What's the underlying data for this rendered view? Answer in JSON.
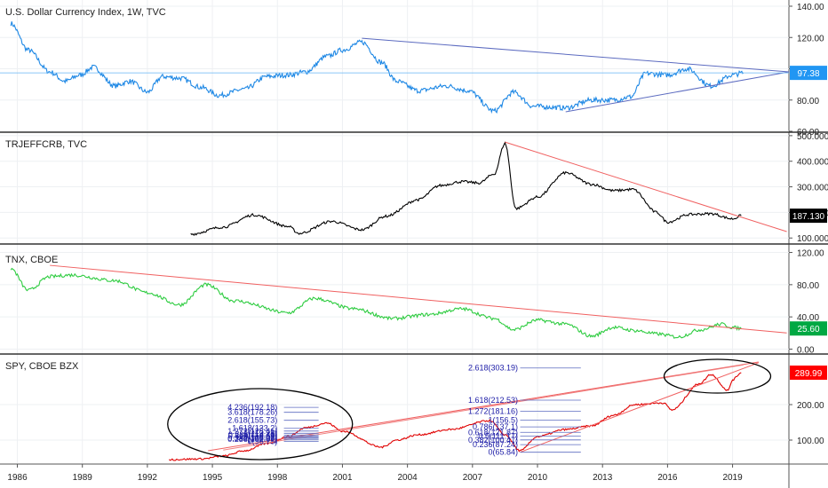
{
  "chart_data": [
    {
      "type": "line",
      "title": "U.S. Dollar Currency Index, 1W, TVC",
      "color": "#1e88e5",
      "ylim": [
        60,
        140
      ],
      "y_ticks": [
        "140.00",
        "120.00",
        "100.00",
        "80.00",
        "60.00"
      ],
      "y_tick_values": [
        140,
        120,
        100,
        80,
        60
      ],
      "last_value": "97.38",
      "last_value_num": 97.38,
      "badge_color": "#2196f3",
      "x": [
        1985.7,
        1986.5,
        1987.5,
        1988.2,
        1988.9,
        1989.5,
        1990.5,
        1991.2,
        1992.0,
        1992.7,
        1993.5,
        1994.5,
        1995.3,
        1996.5,
        1997.5,
        1998.5,
        1999.3,
        2000.3,
        2001.0,
        2001.9,
        2002.8,
        2003.5,
        2004.5,
        2005.8,
        2006.8,
        2008.0,
        2008.9,
        2009.8,
        2011.3,
        2012.5,
        2013.5,
        2014.3,
        2015.0,
        2016.0,
        2016.9,
        2018.0,
        2019.0,
        2019.5
      ],
      "y": [
        129,
        112,
        98,
        92,
        96,
        101,
        89,
        92,
        85,
        95,
        94,
        88,
        83,
        87,
        95,
        96,
        98,
        108,
        112,
        117,
        104,
        92,
        86,
        89,
        86,
        73,
        85,
        76,
        75,
        80,
        80,
        82,
        97,
        96,
        100,
        89,
        96,
        97.38
      ]
    },
    {
      "type": "line",
      "title": "TRJEFFCRB, TVC",
      "color": "#000000",
      "ylim": [
        80,
        510
      ],
      "y_ticks": [
        "500.000",
        "400.000",
        "300.000",
        "200.000",
        "100.000"
      ],
      "y_tick_values": [
        500,
        400,
        300,
        200,
        100
      ],
      "last_value": "187.130",
      "last_value_num": 187.13,
      "badge_color": "#000000",
      "x": [
        1994.0,
        1995.5,
        1996.9,
        1998.5,
        1999.0,
        2000.5,
        2001.9,
        2003.0,
        2004.5,
        2005.5,
        2006.5,
        2007.3,
        2008.0,
        2008.5,
        2009.0,
        2010.0,
        2011.3,
        2012.5,
        2013.5,
        2014.4,
        2015.5,
        2016.0,
        2017.0,
        2018.0,
        2019.0,
        2019.4
      ],
      "y": [
        115,
        143,
        190,
        145,
        118,
        165,
        132,
        185,
        250,
        305,
        320,
        315,
        350,
        470,
        215,
        260,
        355,
        310,
        285,
        290,
        200,
        162,
        192,
        195,
        175,
        187.13
      ]
    },
    {
      "type": "line",
      "title": "TNX, CBOE",
      "color": "#2ecc40",
      "ylim": [
        -5,
        125
      ],
      "y_ticks": [
        "120.00",
        "80.00",
        "40.00",
        "0.00"
      ],
      "y_tick_values": [
        120,
        80,
        40,
        0
      ],
      "last_value": "25.60",
      "last_value_num": 25.6,
      "badge_color": "#00a843",
      "x": [
        1985.7,
        1986.5,
        1987.5,
        1988.5,
        1990.5,
        1992.0,
        1993.5,
        1994.7,
        1996.0,
        1998.5,
        1999.7,
        2001.5,
        2003.3,
        2005.0,
        2006.5,
        2008.0,
        2008.9,
        2010.0,
        2011.3,
        2012.5,
        2013.5,
        2014.5,
        2015.5,
        2016.5,
        2017.5,
        2018.5,
        2019.0,
        2019.4
      ],
      "y": [
        100,
        73,
        90,
        92,
        85,
        70,
        55,
        80,
        60,
        45,
        63,
        50,
        38,
        43,
        50,
        38,
        24,
        36,
        31,
        16,
        27,
        23,
        19,
        15,
        24,
        31,
        27,
        25.6
      ]
    },
    {
      "type": "line",
      "title": "SPY, CBOE BZX",
      "color": "#e00000",
      "ylim": [
        40,
        340
      ],
      "y_ticks": [
        "200.00",
        "100.00"
      ],
      "y_tick_values": [
        200,
        100
      ],
      "last_value": "289.99",
      "last_value_num": 289.99,
      "badge_color": "#ff0000",
      "x": [
        1993.0,
        1994.5,
        1995.5,
        1996.5,
        1997.5,
        1998.5,
        1999.3,
        2000.3,
        2001.0,
        2002.8,
        2003.5,
        2004.5,
        2006.0,
        2007.8,
        2008.5,
        2009.2,
        2010.0,
        2011.3,
        2012.5,
        2013.5,
        2014.5,
        2015.8,
        2016.2,
        2017.5,
        2018.0,
        2018.8,
        2019.0,
        2019.4
      ],
      "y": [
        45,
        47,
        55,
        70,
        90,
        110,
        135,
        148,
        125,
        80,
        100,
        115,
        130,
        155,
        115,
        70,
        110,
        130,
        140,
        170,
        200,
        205,
        185,
        260,
        285,
        240,
        270,
        289.99
      ]
    }
  ],
  "x_ticks": [
    "1986",
    "1989",
    "1992",
    "1995",
    "1998",
    "2001",
    "2004",
    "2007",
    "2010",
    "2013",
    "2016",
    "2019"
  ],
  "x_tick_values": [
    1986,
    1989,
    1992,
    1995,
    1998,
    2001,
    2004,
    2007,
    2010,
    2013,
    2016,
    2019
  ],
  "fib_right": [
    {
      "label": "2.618(303.19)",
      "value": 303.19
    },
    {
      "label": "1.618(212.53)",
      "value": 212.53
    },
    {
      "label": "1.272(181.16)",
      "value": 181.16
    },
    {
      "label": "1(156.5)",
      "value": 156.5
    },
    {
      "label": "0.786(137.1)",
      "value": 137.1
    },
    {
      "label": "0.618(121.87)",
      "value": 121.87
    },
    {
      "label": "0.5(111.17)",
      "value": 111.17
    },
    {
      "label": "0.382(100.47)",
      "value": 100.47
    },
    {
      "label": "0.236(87.24)",
      "value": 87.24
    },
    {
      "label": "0(65.84)",
      "value": 65.84
    }
  ],
  "fib_left": [
    {
      "label": "4.236(192.18)",
      "value": 192.18
    },
    {
      "label": "3.618(178.26)",
      "value": 178.26
    },
    {
      "label": "2.618(155.73)",
      "value": 155.73
    },
    {
      "label": "1.618(133.2)",
      "value": 133.2
    },
    {
      "label": "1.272(125.41)",
      "value": 125.41
    },
    {
      "label": "1(119.28)",
      "value": 119.28
    },
    {
      "label": "0.786(114.46)",
      "value": 114.46
    },
    {
      "label": "0.618(110.68)",
      "value": 110.68
    },
    {
      "label": "0.5(108.02)",
      "value": 108.02
    },
    {
      "label": "0.382(105.36)",
      "value": 105.36
    },
    {
      "label": "0.236(102.07)",
      "value": 102.07
    },
    {
      "label": "0(96.75)",
      "value": 96.75
    }
  ]
}
